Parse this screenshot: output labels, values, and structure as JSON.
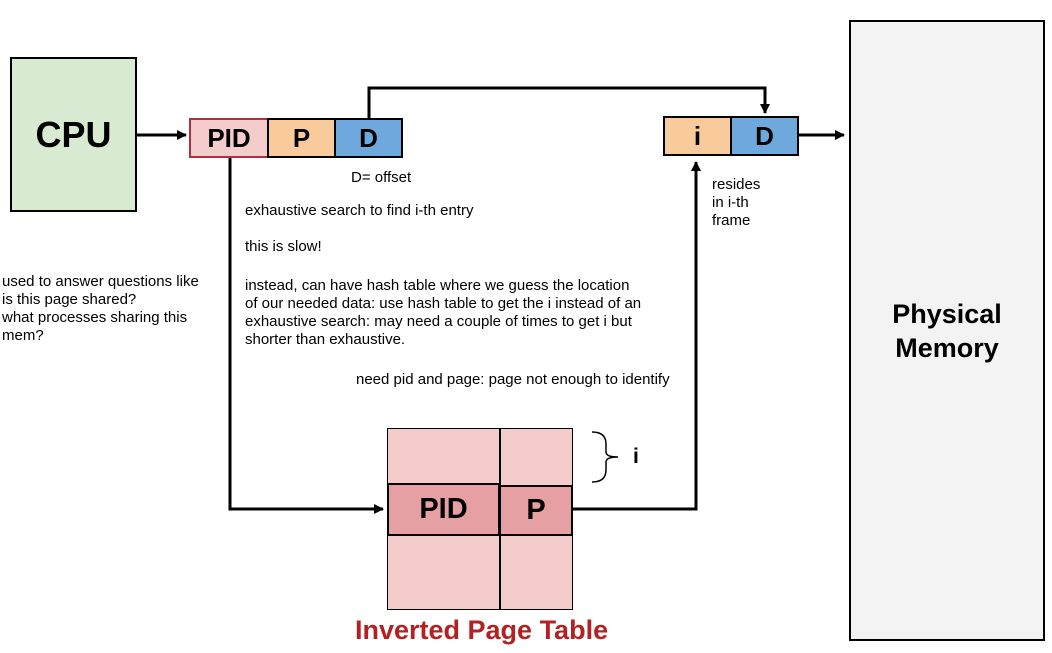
{
  "cpu": {
    "label": "CPU",
    "color": "#d9ead3"
  },
  "logical_address": {
    "pid": "PID",
    "page": "P",
    "offset": "D",
    "pid_color": "#f4cccc",
    "pid_border": "#b03040",
    "page_color": "#f9cb9c",
    "offset_color": "#6fa8dc"
  },
  "offset_label": "D= offset",
  "physical_address": {
    "frame": "i",
    "offset": "D"
  },
  "resides_note": "resides\nin i-th\nframe",
  "physical_memory": {
    "label": "Physical\nMemory",
    "color": "#f3f3f3"
  },
  "notes": {
    "exhaustive": "exhaustive search to find i-th entry",
    "slow": "this is slow!",
    "hash": "instead, can have hash table where we guess the location\nof our needed data: use hash table to get the i instead of an\nexhaustive search: may need a couple of times to get i but\nshorter than exhaustive.",
    "need": "need  pid and page: page not enough to identify",
    "used_for": "used to answer questions like\nis this page shared?\nwhat processes sharing this\nmem?"
  },
  "inverted_table": {
    "pid": "PID",
    "page": "P",
    "index_label": "i",
    "title": "Inverted Page Table",
    "cell_color": "#f4cccc",
    "row_color": "#e6a0a3",
    "title_color": "#b22222"
  }
}
